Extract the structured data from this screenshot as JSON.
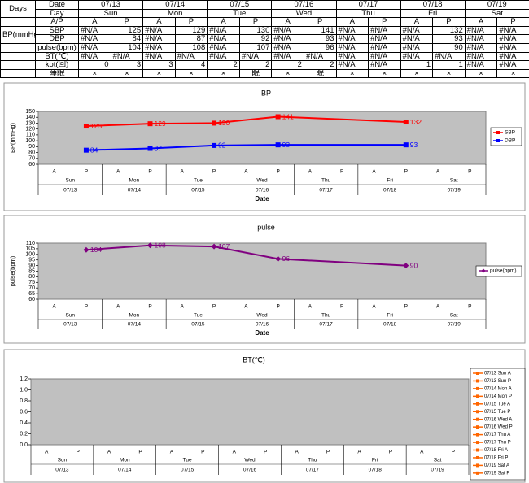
{
  "table": {
    "days_label": "Days",
    "date_label": "Date",
    "day_label": "Day",
    "ap_label": "A/P",
    "bp_label": "BP(mmHg)",
    "dates": [
      "07/13",
      "07/14",
      "07/15",
      "07/16",
      "07/17",
      "07/18",
      "07/19"
    ],
    "days": [
      "Sun",
      "Mon",
      "Tue",
      "Wed",
      "Thu",
      "Fri",
      "Sat"
    ],
    "ap": [
      "A",
      "P",
      "A",
      "P",
      "A",
      "P",
      "A",
      "P",
      "A",
      "P",
      "A",
      "P",
      "A",
      "P"
    ],
    "rows": [
      {
        "label": "SBP",
        "cells": [
          "#N/A",
          125,
          "#N/A",
          129,
          "#N/A",
          130,
          "#N/A",
          141,
          "#N/A",
          "#N/A",
          "#N/A",
          132,
          "#N/A",
          "#N/A"
        ]
      },
      {
        "label": "DBP",
        "cells": [
          "#N/A",
          84,
          "#N/A",
          87,
          "#N/A",
          92,
          "#N/A",
          93,
          "#N/A",
          "#N/A",
          "#N/A",
          93,
          "#N/A",
          "#N/A"
        ]
      },
      {
        "label": "pulse(bpm)",
        "cells": [
          "#N/A",
          104,
          "#N/A",
          108,
          "#N/A",
          107,
          "#N/A",
          96,
          "#N/A",
          "#N/A",
          "#N/A",
          90,
          "#N/A",
          "#N/A"
        ]
      },
      {
        "label": "BT(℃)",
        "cells": [
          "#N/A",
          "#N/A",
          "#N/A",
          "#N/A",
          "#N/A",
          "#N/A",
          "#N/A",
          "#N/A",
          "#N/A",
          "#N/A",
          "#N/A",
          "#N/A",
          "#N/A",
          "#N/A"
        ]
      },
      {
        "label": "kot(回)",
        "cells": [
          0,
          3,
          3,
          4,
          2,
          2,
          2,
          2,
          "#N/A",
          "#N/A",
          1,
          1,
          "#N/A",
          "#N/A"
        ]
      },
      {
        "label": "睡眠",
        "cells": [
          "×",
          "×",
          "×",
          "×",
          "×",
          "眠",
          "×",
          "眠",
          "×",
          "×",
          "×",
          "×",
          "×",
          "×"
        ]
      }
    ]
  },
  "chart_data": [
    {
      "type": "line",
      "title": "BP",
      "y_label": "BP(mmHg)",
      "x_label": "Date",
      "categories": [
        "A",
        "P",
        "A",
        "P",
        "A",
        "P",
        "A",
        "P",
        "A",
        "P",
        "A",
        "P",
        "A",
        "P"
      ],
      "days": [
        "Sun",
        "Mon",
        "Tue",
        "Wed",
        "Thu",
        "Fri",
        "Sat"
      ],
      "dates": [
        "07/13",
        "07/14",
        "07/15",
        "07/16",
        "07/17",
        "07/18",
        "07/19"
      ],
      "series": [
        {
          "name": "SBP",
          "color": "#ff0000",
          "marker": "square",
          "values": [
            null,
            125,
            null,
            129,
            null,
            130,
            null,
            141,
            null,
            null,
            null,
            132,
            null,
            null
          ]
        },
        {
          "name": "DBP",
          "color": "#0000ff",
          "marker": "square",
          "values": [
            null,
            84,
            null,
            87,
            null,
            92,
            null,
            93,
            null,
            null,
            null,
            93,
            null,
            null
          ]
        }
      ],
      "ylim": [
        60,
        150
      ],
      "yticks": [
        60,
        70,
        80,
        90,
        100,
        110,
        120,
        130,
        140,
        150
      ],
      "legend": "right",
      "plot_color": "#c0c0c0"
    },
    {
      "type": "line",
      "title": "pulse",
      "y_label": "pulse(bpm)",
      "x_label": "Date",
      "categories": [
        "A",
        "P",
        "A",
        "P",
        "A",
        "P",
        "A",
        "P",
        "A",
        "P",
        "A",
        "P",
        "A",
        "P"
      ],
      "days": [
        "Sun",
        "Mon",
        "Tue",
        "Wed",
        "Thu",
        "Fri",
        "Sat"
      ],
      "dates": [
        "07/13",
        "07/14",
        "07/15",
        "07/16",
        "07/17",
        "07/18",
        "07/19"
      ],
      "series": [
        {
          "name": "pulse(bpm)",
          "color": "#800080",
          "marker": "diamond",
          "values": [
            null,
            104,
            null,
            108,
            null,
            107,
            null,
            96,
            null,
            null,
            null,
            90,
            null,
            null
          ]
        }
      ],
      "ylim": [
        60,
        110
      ],
      "yticks": [
        60,
        65,
        70,
        75,
        80,
        85,
        90,
        95,
        100,
        105,
        110
      ],
      "legend": "right",
      "plot_color": "#c0c0c0"
    },
    {
      "type": "line",
      "title": "BT(℃)",
      "categories": [
        "A",
        "P",
        "A",
        "P",
        "A",
        "P",
        "A",
        "P",
        "A",
        "P",
        "A",
        "P",
        "A",
        "P"
      ],
      "days": [
        "Sun",
        "Mon",
        "Tue",
        "Wed",
        "Thu",
        "Fri",
        "Sat"
      ],
      "dates": [
        "07/13",
        "07/14",
        "07/15",
        "07/16",
        "07/17",
        "07/18",
        "07/19"
      ],
      "series": [
        {
          "name": "07/13 Sun A",
          "color": "#ff6600",
          "marker": "square",
          "values": [
            null,
            null,
            null,
            null,
            null,
            null,
            null,
            null,
            null,
            null,
            null,
            null,
            null,
            null
          ]
        },
        {
          "name": "07/13 Sun P",
          "color": "#ff6600",
          "marker": "square",
          "values": [
            null,
            null,
            null,
            null,
            null,
            null,
            null,
            null,
            null,
            null,
            null,
            null,
            null,
            null
          ]
        },
        {
          "name": "07/14 Mon A",
          "color": "#ff6600",
          "marker": "square",
          "values": [
            null,
            null,
            null,
            null,
            null,
            null,
            null,
            null,
            null,
            null,
            null,
            null,
            null,
            null
          ]
        },
        {
          "name": "07/14 Mon P",
          "color": "#ff6600",
          "marker": "square",
          "values": [
            null,
            null,
            null,
            null,
            null,
            null,
            null,
            null,
            null,
            null,
            null,
            null,
            null,
            null
          ]
        },
        {
          "name": "07/15 Tue A",
          "color": "#ff6600",
          "marker": "square",
          "values": [
            null,
            null,
            null,
            null,
            null,
            null,
            null,
            null,
            null,
            null,
            null,
            null,
            null,
            null
          ]
        },
        {
          "name": "07/15 Tue P",
          "color": "#ff6600",
          "marker": "square",
          "values": [
            null,
            null,
            null,
            null,
            null,
            null,
            null,
            null,
            null,
            null,
            null,
            null,
            null,
            null
          ]
        },
        {
          "name": "07/16 Wed A",
          "color": "#ff6600",
          "marker": "square",
          "values": [
            null,
            null,
            null,
            null,
            null,
            null,
            null,
            null,
            null,
            null,
            null,
            null,
            null,
            null
          ]
        },
        {
          "name": "07/16 Wed P",
          "color": "#ff6600",
          "marker": "square",
          "values": [
            null,
            null,
            null,
            null,
            null,
            null,
            null,
            null,
            null,
            null,
            null,
            null,
            null,
            null
          ]
        },
        {
          "name": "07/17 Thu A",
          "color": "#ff6600",
          "marker": "square",
          "values": [
            null,
            null,
            null,
            null,
            null,
            null,
            null,
            null,
            null,
            null,
            null,
            null,
            null,
            null
          ]
        },
        {
          "name": "07/17 Thu P",
          "color": "#ff6600",
          "marker": "square",
          "values": [
            null,
            null,
            null,
            null,
            null,
            null,
            null,
            null,
            null,
            null,
            null,
            null,
            null,
            null
          ]
        },
        {
          "name": "07/18 Fri A",
          "color": "#ff6600",
          "marker": "square",
          "values": [
            null,
            null,
            null,
            null,
            null,
            null,
            null,
            null,
            null,
            null,
            null,
            null,
            null,
            null
          ]
        },
        {
          "name": "07/18 Fri P",
          "color": "#ff6600",
          "marker": "square",
          "values": [
            null,
            null,
            null,
            null,
            null,
            null,
            null,
            null,
            null,
            null,
            null,
            null,
            null,
            null
          ]
        },
        {
          "name": "07/19 Sat A",
          "color": "#ff6600",
          "marker": "square",
          "values": [
            null,
            null,
            null,
            null,
            null,
            null,
            null,
            null,
            null,
            null,
            null,
            null,
            null,
            null
          ]
        },
        {
          "name": "07/19 Sat P",
          "color": "#ff6600",
          "marker": "square",
          "values": [
            null,
            null,
            null,
            null,
            null,
            null,
            null,
            null,
            null,
            null,
            null,
            null,
            null,
            null
          ]
        }
      ],
      "ylim": [
        0,
        1.2
      ],
      "yticks": [
        {
          "value": 0,
          "label": "0.0"
        },
        0.2,
        0.4,
        0.6,
        0.8,
        {
          "value": 1,
          "label": "1.0"
        },
        1.2
      ],
      "legend": "right",
      "plot_color": "#c0c0c0"
    }
  ]
}
